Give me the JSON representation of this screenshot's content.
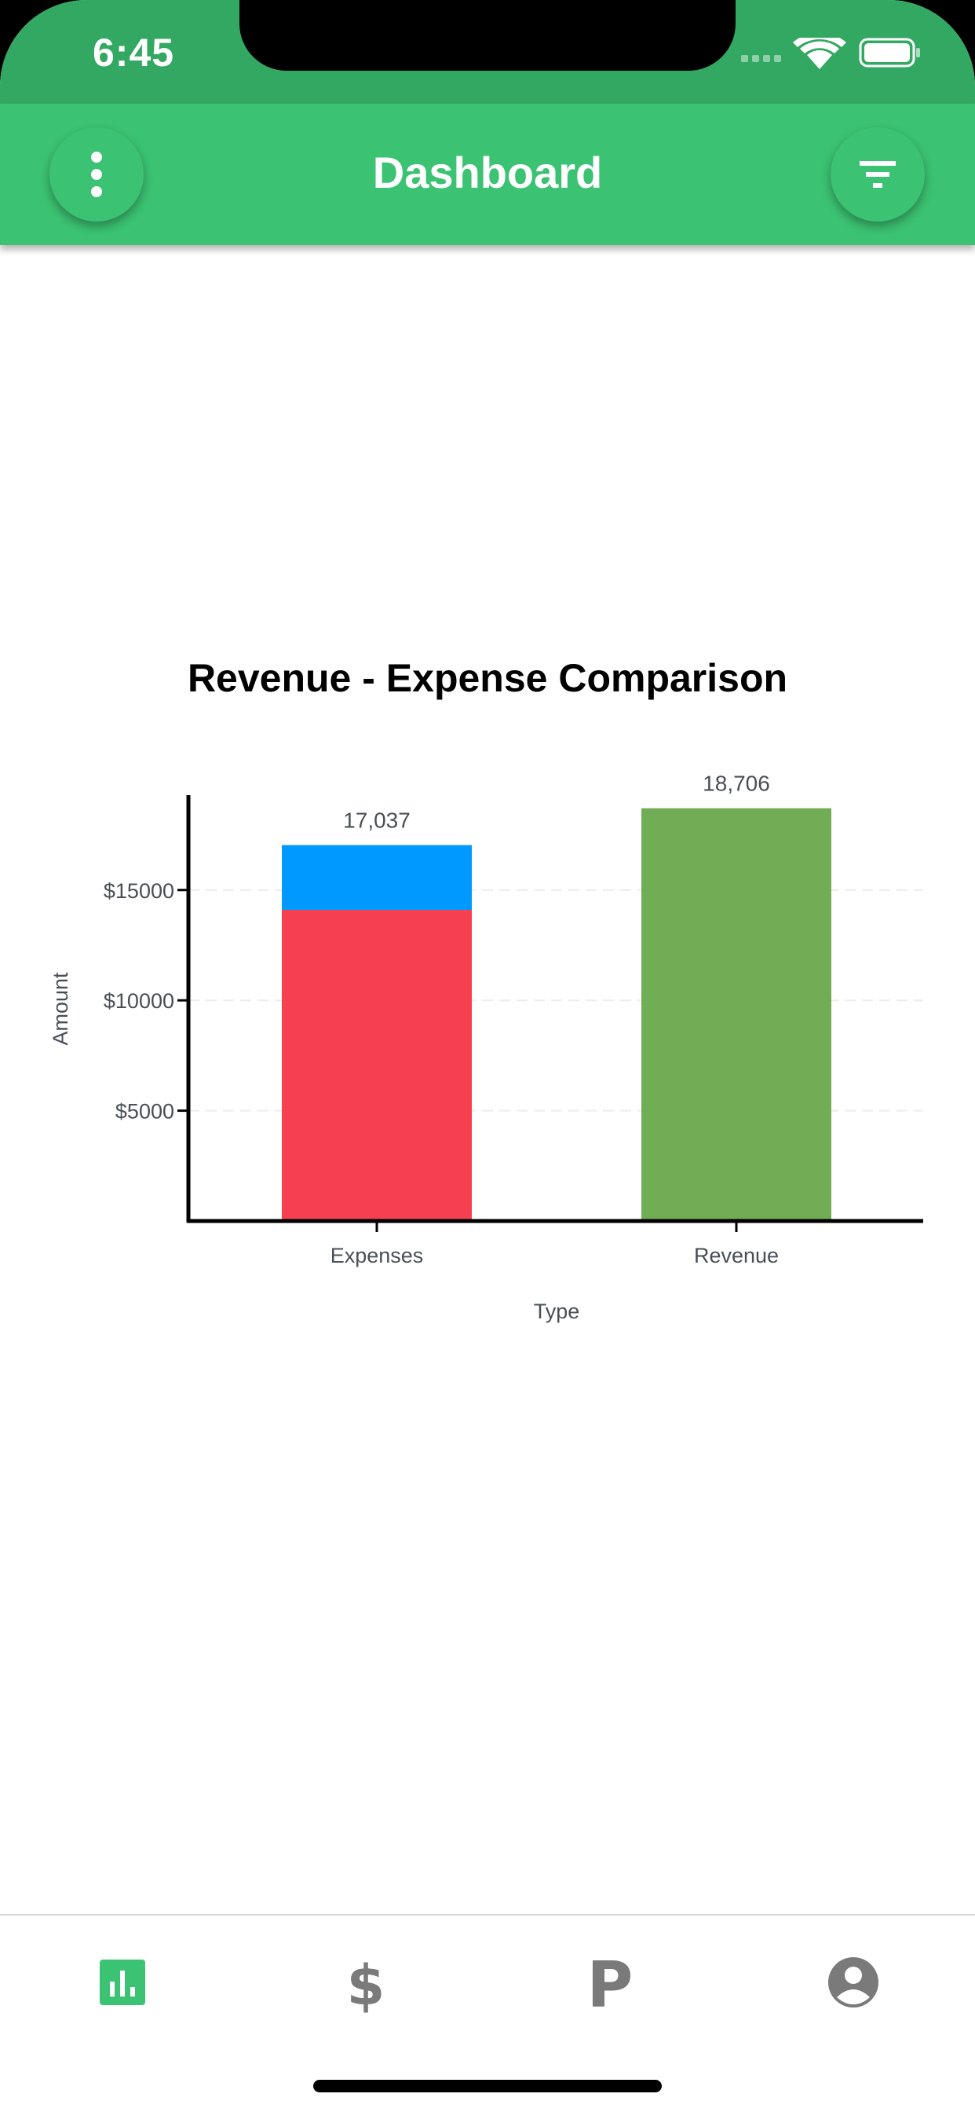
{
  "status_bar": {
    "time": "6:45"
  },
  "header": {
    "title": "Dashboard",
    "left_button_icon": "more-vertical-icon",
    "right_button_icon": "filter-icon"
  },
  "colors": {
    "header": "#3bc272",
    "status_bar": "#33a862",
    "expenses_primary": "#f6404f",
    "expenses_secondary": "#0099ff",
    "revenue": "#70ad54",
    "tab_active": "#3bc272",
    "tab_inactive": "#7a7a7a"
  },
  "chart_data": {
    "type": "bar",
    "title": "Revenue - Expense Comparison",
    "xlabel": "Type",
    "ylabel": "Amount",
    "categories": [
      "Expenses",
      "Revenue"
    ],
    "stacked": true,
    "series": [
      {
        "values": [
          14100,
          18706
        ],
        "colors": [
          "#f6404f",
          "#70ad54"
        ]
      },
      {
        "values": [
          2937,
          0
        ],
        "colors": [
          "#0099ff",
          "#70ad54"
        ]
      }
    ],
    "totals": [
      17037,
      18706
    ],
    "total_labels": [
      "17,037",
      "18,706"
    ],
    "yticks": [
      5000,
      10000,
      15000
    ],
    "ytick_labels": [
      "$5000",
      "$10000",
      "$15000"
    ],
    "ylim": [
      0,
      19300
    ],
    "grid": true
  },
  "tabs": [
    {
      "icon": "bar-chart-icon",
      "active": true
    },
    {
      "icon": "dollar-icon",
      "active": false
    },
    {
      "icon": "parking-icon",
      "active": false
    },
    {
      "icon": "account-icon",
      "active": false
    }
  ]
}
